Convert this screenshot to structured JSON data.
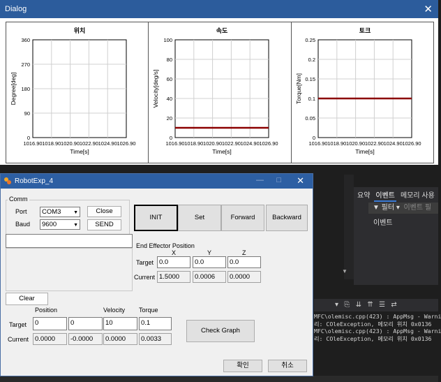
{
  "dialog": {
    "title": "Dialog",
    "close_glyph": "✕"
  },
  "chart_data": [
    {
      "type": "line",
      "title": "위치",
      "xlabel": "Time[s]",
      "ylabel": "Degree[deg]",
      "xlim": [
        1016.9,
        1026.9
      ],
      "ylim": [
        0,
        360
      ],
      "xticks": [
        "1016.90",
        "1018.90",
        "1020.90",
        "1022.90",
        "1024.90",
        "1026.90"
      ],
      "yticks": [
        "0",
        "90",
        "180",
        "270",
        "360"
      ],
      "series": [
        {
          "x": [],
          "y": [],
          "color": "#8b0000"
        }
      ],
      "grid": true
    },
    {
      "type": "line",
      "title": "속도",
      "xlabel": "Time[s]",
      "ylabel": "Velocity[deg/s]",
      "xlim": [
        1016.9,
        1026.9
      ],
      "ylim": [
        0,
        100
      ],
      "xticks": [
        "1016.90",
        "1018.90",
        "1020.90",
        "1022.90",
        "1024.90",
        "1026.90"
      ],
      "yticks": [
        "0",
        "20",
        "40",
        "60",
        "80",
        "100"
      ],
      "series": [
        {
          "x": [
            1016.9,
            1026.9
          ],
          "y": [
            10,
            10
          ],
          "color": "#8b0000"
        }
      ],
      "grid": true
    },
    {
      "type": "line",
      "title": "토크",
      "xlabel": "Time[s]",
      "ylabel": "Torque[Nm]",
      "xlim": [
        1016.9,
        1026.9
      ],
      "ylim": [
        0,
        0.25
      ],
      "xticks": [
        "1016.90",
        "1018.90",
        "1020.90",
        "1022.90",
        "1024.90",
        "1026.90"
      ],
      "yticks": [
        "0",
        "0.05",
        "0.1",
        "0.15",
        "0.2",
        "0.25"
      ],
      "series": [
        {
          "x": [
            1016.9,
            1026.9
          ],
          "y": [
            0.1,
            0.1
          ],
          "color": "#8b0000"
        }
      ],
      "grid": true
    }
  ],
  "robot": {
    "title": "RobotExp_4",
    "minimize_glyph": "—",
    "maximize_glyph": "□",
    "close_glyph": "✕",
    "comm": {
      "group_label": "Comm",
      "port_label": "Port",
      "port_value": "COM3",
      "baud_label": "Baud",
      "baud_value": "9600",
      "close_label": "Close",
      "send_label": "SEND",
      "clear_label": "Clear"
    },
    "buttons": {
      "init": "INIT",
      "set": "Set",
      "forward": "Forward",
      "backward": "Backward",
      "check_graph": "Check Graph",
      "ok": "확인",
      "cancel": "취소"
    },
    "end_effector": {
      "title": "End Effector Position",
      "headers": [
        "X",
        "Y",
        "Z"
      ],
      "target_label": "Target",
      "target": [
        "0.0",
        "0.0",
        "0.0"
      ],
      "current_label": "Current",
      "current": [
        "1.5000",
        "0.0006",
        "0.0000"
      ]
    },
    "joint": {
      "headers": [
        "Position",
        "Velocity",
        "Torque"
      ],
      "target_label": "Target",
      "target": [
        "0",
        "0",
        "10",
        "0.1"
      ],
      "current_label": "Current",
      "current": [
        "0.0000",
        "-0.0000",
        "0.0000",
        "0.0033"
      ]
    }
  },
  "ide": {
    "tabs": [
      "요약",
      "이벤트",
      "메모리 사용"
    ],
    "filter_label": "▼ 필터 ▾",
    "filter_hint": "이벤트 필",
    "event_column": "이벤트",
    "log_lines": [
      "MFC\\olemisc.cpp(423) : AppMsg - Warni",
      "리: COleException, 메모리 위치 0x0136",
      "MFC\\olemisc.cpp(423) : AppMsg - Warni",
      "리: COleException, 메모리 위치 0x0136"
    ]
  }
}
